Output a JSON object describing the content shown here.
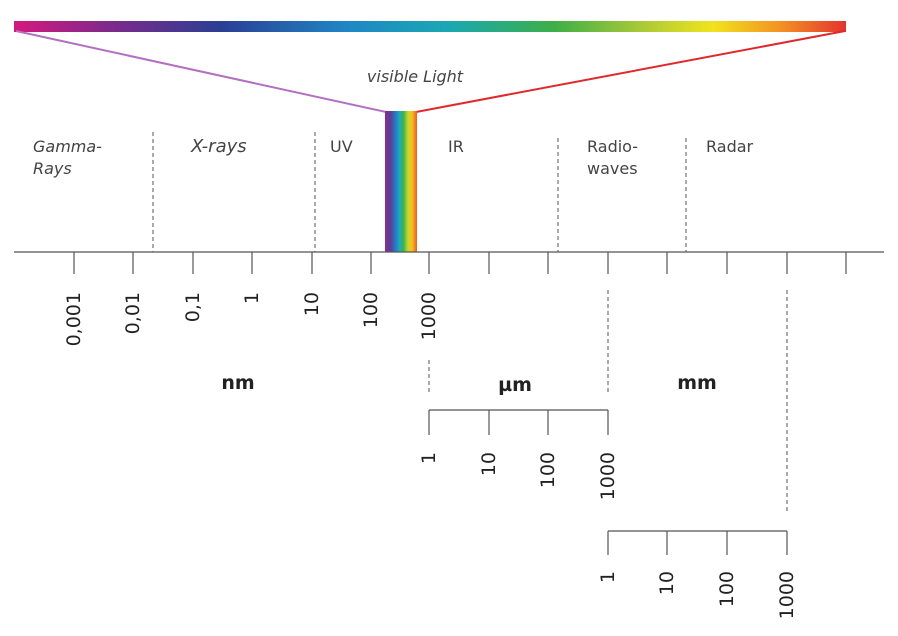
{
  "visible_label": "visible Light",
  "regions": [
    {
      "id": "gamma",
      "line1": "Gamma-",
      "line2": "Rays",
      "italic": true
    },
    {
      "id": "xrays",
      "line1": "X-rays",
      "line2": "",
      "italic": true
    },
    {
      "id": "uv",
      "line1": "UV",
      "line2": "",
      "italic": false
    },
    {
      "id": "ir",
      "line1": "IR",
      "line2": "",
      "italic": false
    },
    {
      "id": "radio",
      "line1": "Radio-",
      "line2": "waves",
      "italic": false
    },
    {
      "id": "radar",
      "line1": "Radar",
      "line2": "",
      "italic": false
    }
  ],
  "nm_scale": {
    "unit": "nm",
    "ticks": [
      "0,001",
      "0,01",
      "0,1",
      "1",
      "10",
      "100",
      "1000"
    ]
  },
  "um_scale": {
    "unit": "µm",
    "ticks": [
      "1",
      "10",
      "100",
      "1000"
    ]
  },
  "mm_scale": {
    "unit": "mm",
    "ticks": [
      "1",
      "10",
      "100",
      "1000"
    ]
  },
  "colors": {
    "spectrum": [
      "#d4197d",
      "#7b2a8c",
      "#2a3f94",
      "#1f86c6",
      "#1aa7b4",
      "#3daf47",
      "#a6c839",
      "#f1e31e",
      "#f39322",
      "#e3342f"
    ],
    "left_line": "#b36fc0",
    "right_line": "#e0282d",
    "axis": "#555555"
  }
}
